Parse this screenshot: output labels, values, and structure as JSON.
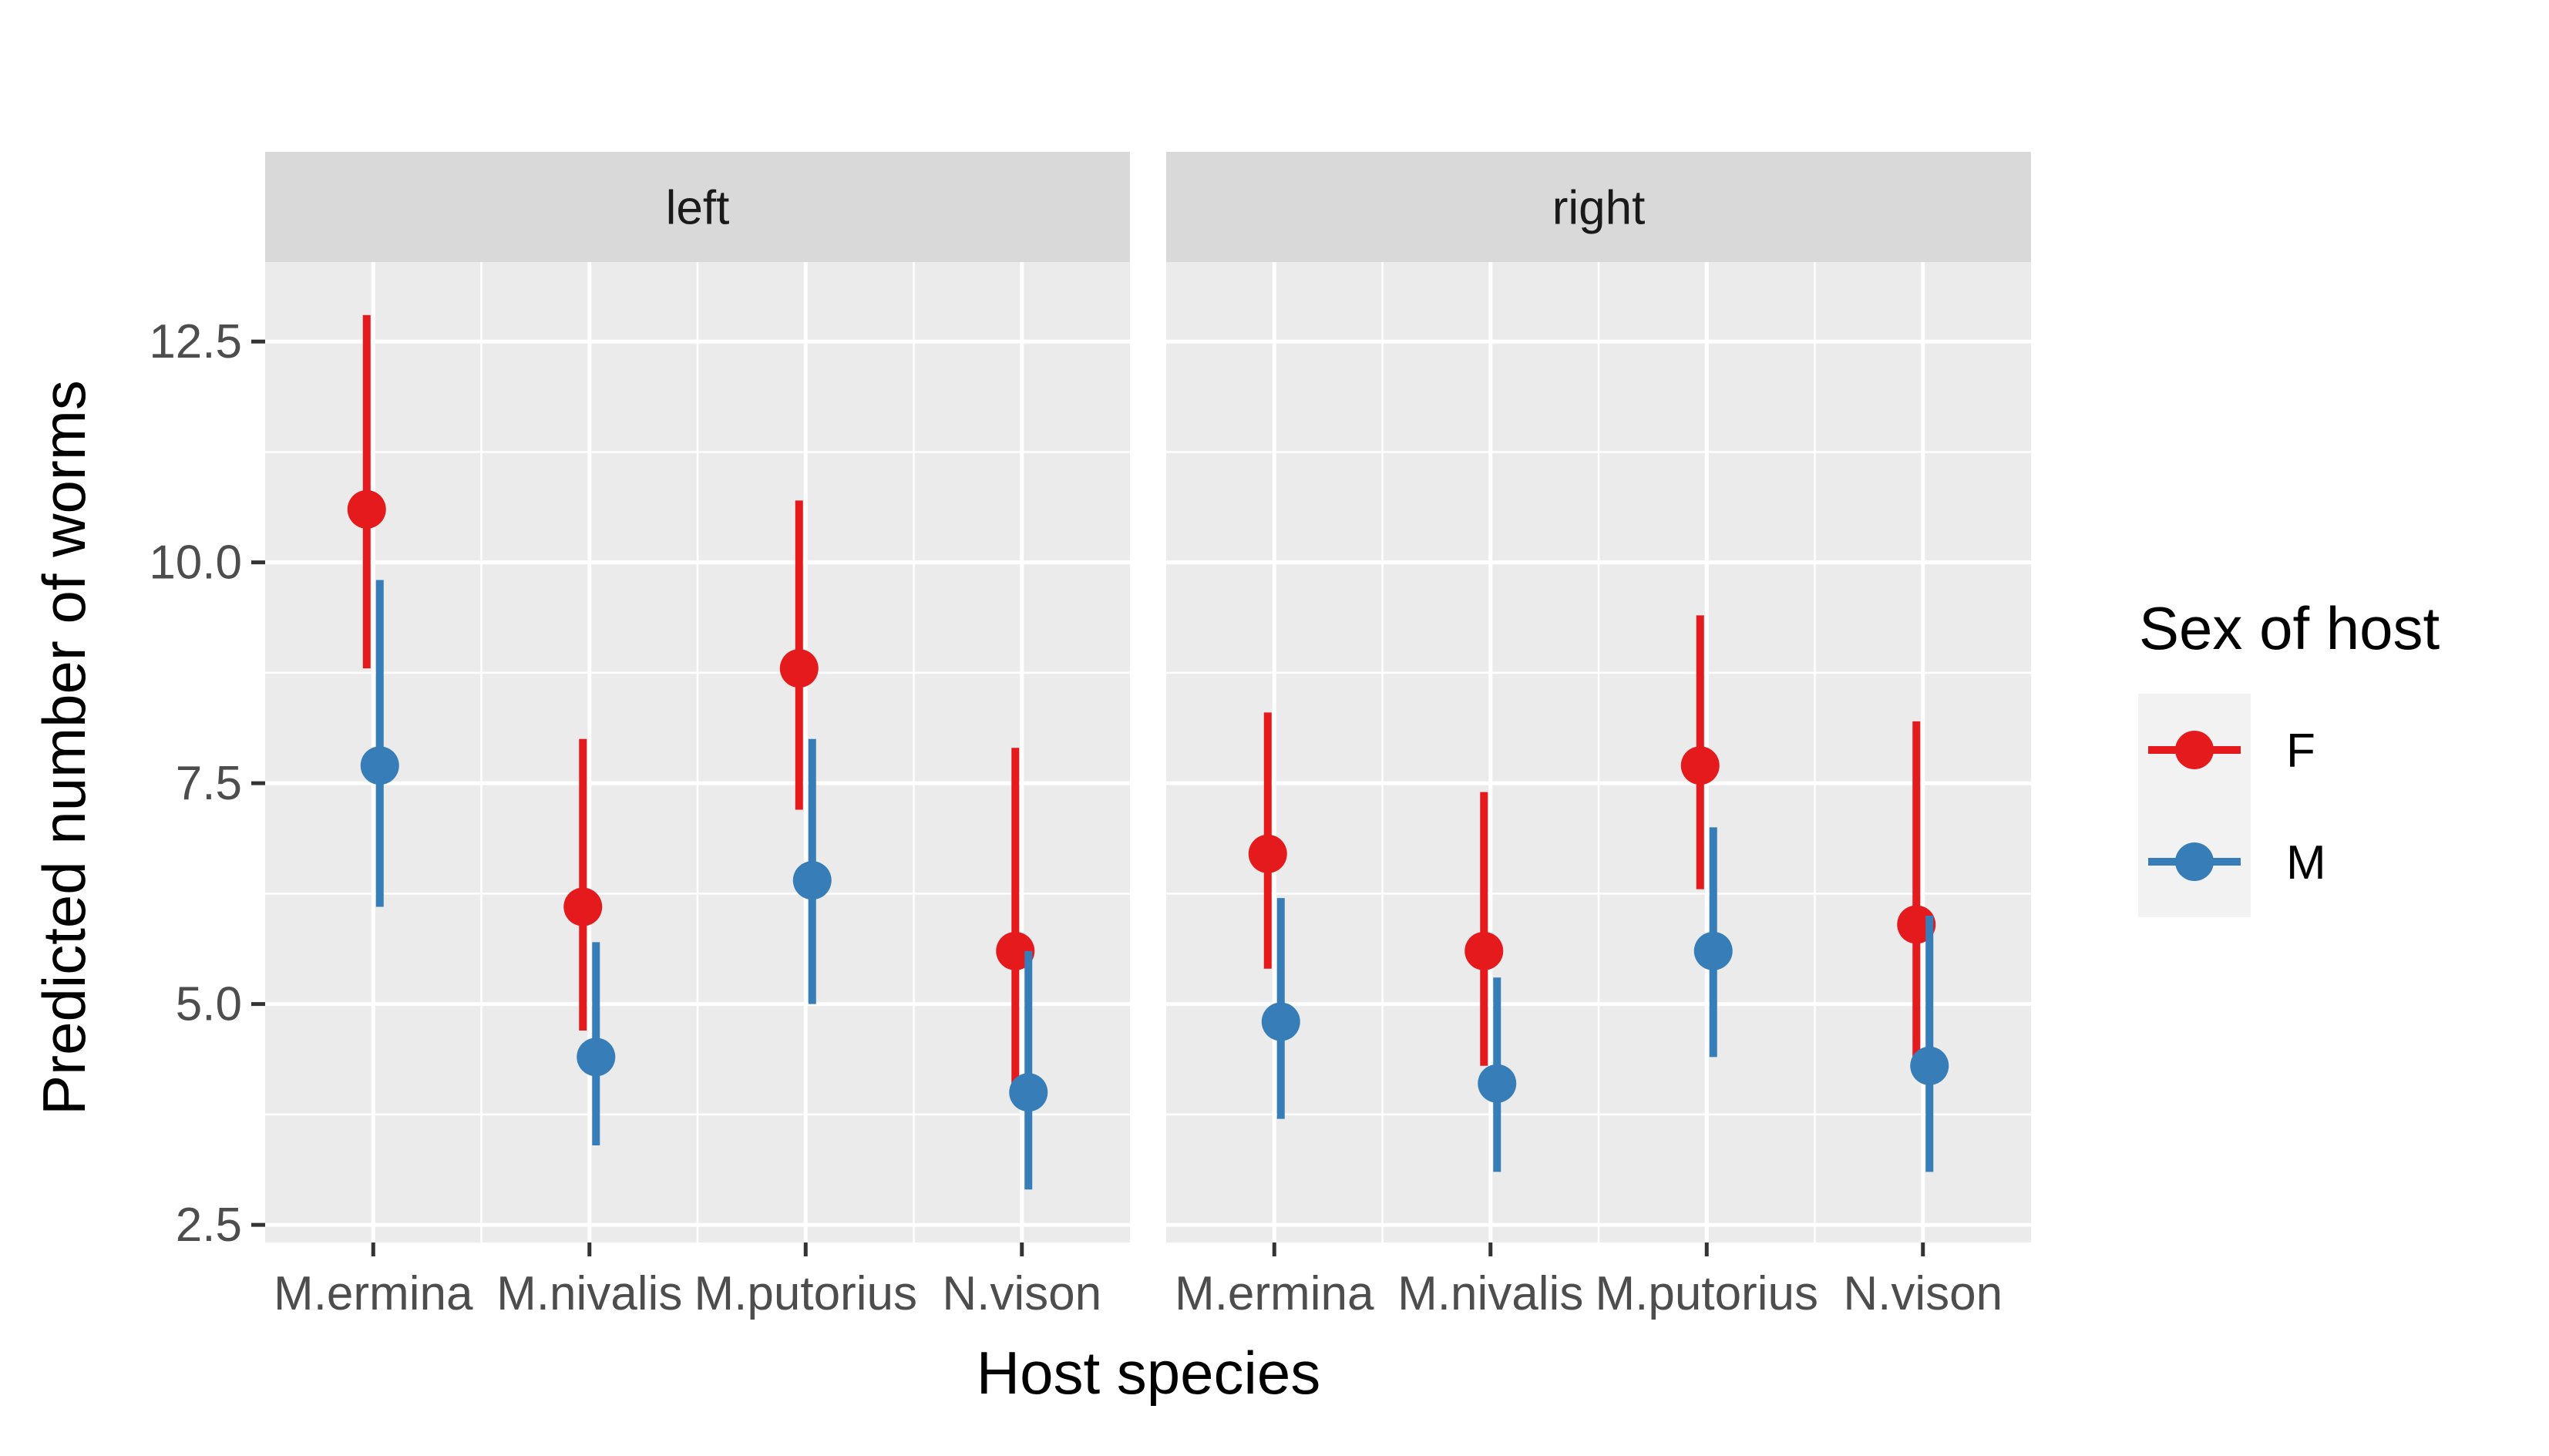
{
  "chart_data": {
    "type": "pointrange",
    "facets": [
      "left",
      "right"
    ],
    "categories": [
      "M.ermina",
      "M.nivalis",
      "M.putorius",
      "N.vison"
    ],
    "xlabel": "Host species",
    "ylabel": "Predicted number of worms",
    "ylim": [
      2.3,
      13.4
    ],
    "yticks": [
      2.5,
      5.0,
      7.5,
      10.0,
      12.5
    ],
    "ytick_labels": [
      "2.5",
      "5.0",
      "7.5",
      "10.0",
      "12.5"
    ],
    "grid": true,
    "legend": {
      "title": "Sex of host",
      "placement": "right",
      "entries": [
        {
          "label": "F",
          "color": "#e41a1c"
        },
        {
          "label": "M",
          "color": "#377eb8"
        }
      ]
    },
    "series": [
      {
        "name": "F",
        "color": "#e41a1c",
        "panels": {
          "left": [
            {
              "category": "M.ermina",
              "y": 10.6,
              "lower": 8.8,
              "upper": 12.8
            },
            {
              "category": "M.nivalis",
              "y": 6.1,
              "lower": 4.7,
              "upper": 8.0
            },
            {
              "category": "M.putorius",
              "y": 8.8,
              "lower": 7.2,
              "upper": 10.7
            },
            {
              "category": "N.vison",
              "y": 5.6,
              "lower": 4.1,
              "upper": 7.9
            }
          ],
          "right": [
            {
              "category": "M.ermina",
              "y": 6.7,
              "lower": 5.4,
              "upper": 8.3
            },
            {
              "category": "M.nivalis",
              "y": 5.6,
              "lower": 4.3,
              "upper": 7.4
            },
            {
              "category": "M.putorius",
              "y": 7.7,
              "lower": 6.3,
              "upper": 9.4
            },
            {
              "category": "N.vison",
              "y": 5.9,
              "lower": 4.3,
              "upper": 8.2
            }
          ]
        }
      },
      {
        "name": "M",
        "color": "#377eb8",
        "panels": {
          "left": [
            {
              "category": "M.ermina",
              "y": 7.7,
              "lower": 6.1,
              "upper": 9.8
            },
            {
              "category": "M.nivalis",
              "y": 4.4,
              "lower": 3.4,
              "upper": 5.7
            },
            {
              "category": "M.putorius",
              "y": 6.4,
              "lower": 5.0,
              "upper": 8.0
            },
            {
              "category": "N.vison",
              "y": 4.0,
              "lower": 2.9,
              "upper": 5.6
            }
          ],
          "right": [
            {
              "category": "M.ermina",
              "y": 4.8,
              "lower": 3.7,
              "upper": 6.2
            },
            {
              "category": "M.nivalis",
              "y": 4.1,
              "lower": 3.1,
              "upper": 5.3
            },
            {
              "category": "M.putorius",
              "y": 5.6,
              "lower": 4.4,
              "upper": 7.0
            },
            {
              "category": "N.vison",
              "y": 4.3,
              "lower": 3.1,
              "upper": 6.0
            }
          ]
        }
      }
    ]
  }
}
